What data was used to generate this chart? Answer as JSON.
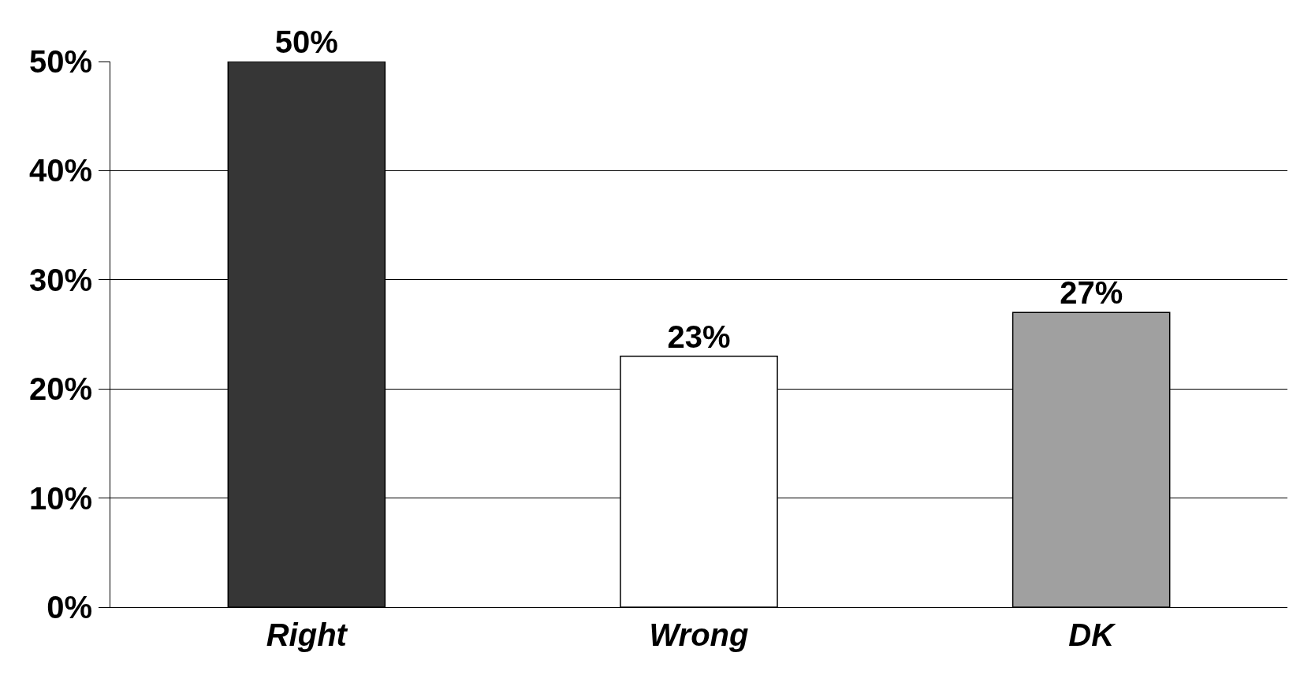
{
  "chart_data": {
    "type": "bar",
    "categories": [
      "Right",
      "Wrong",
      "DK"
    ],
    "values": [
      50,
      23,
      27
    ],
    "colors": [
      "#363636",
      "#ffffff",
      "#a0a0a0"
    ],
    "value_labels": [
      "50%",
      "23%",
      "27%"
    ],
    "ylim": [
      0,
      50
    ],
    "yticks": [
      {
        "value": 0,
        "label": "0%"
      },
      {
        "value": 10,
        "label": "10%"
      },
      {
        "value": 20,
        "label": "20%"
      },
      {
        "value": 30,
        "label": "30%"
      },
      {
        "value": 40,
        "label": "40%"
      },
      {
        "value": 50,
        "label": "50%"
      }
    ],
    "grid": "y"
  }
}
